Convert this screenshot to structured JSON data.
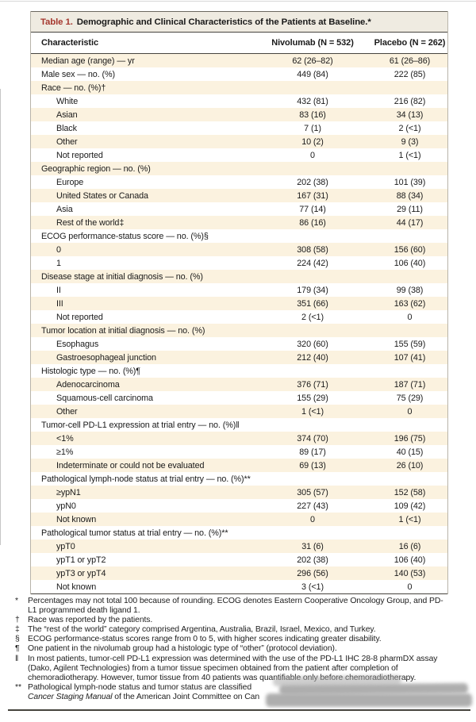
{
  "table": {
    "title_label": "Table 1.",
    "title_text": "Demographic and Clinical Characteristics of the Patients at Baseline.*",
    "columns": [
      "Characteristic",
      "Nivolumab (N = 532)",
      "Placebo (N = 262)"
    ],
    "rows": [
      {
        "label": "Median age (range) — yr",
        "indent": 0,
        "nivolumab": "62 (26–82)",
        "placebo": "61 (26–86)"
      },
      {
        "label": "Male sex — no. (%)",
        "indent": 0,
        "nivolumab": "449 (84)",
        "placebo": "222 (85)"
      },
      {
        "label": "Race — no. (%)†",
        "indent": 0,
        "nivolumab": "",
        "placebo": ""
      },
      {
        "label": "White",
        "indent": 1,
        "nivolumab": "432 (81)",
        "placebo": "216 (82)"
      },
      {
        "label": "Asian",
        "indent": 1,
        "nivolumab": "83 (16)",
        "placebo": "34 (13)"
      },
      {
        "label": "Black",
        "indent": 1,
        "nivolumab": "7 (1)",
        "placebo": "2 (<1)"
      },
      {
        "label": "Other",
        "indent": 1,
        "nivolumab": "10 (2)",
        "placebo": "9 (3)"
      },
      {
        "label": "Not reported",
        "indent": 1,
        "nivolumab": "0",
        "placebo": "1 (<1)"
      },
      {
        "label": "Geographic region — no. (%)",
        "indent": 0,
        "nivolumab": "",
        "placebo": ""
      },
      {
        "label": "Europe",
        "indent": 1,
        "nivolumab": "202 (38)",
        "placebo": "101 (39)"
      },
      {
        "label": "United States or Canada",
        "indent": 1,
        "nivolumab": "167 (31)",
        "placebo": "88 (34)"
      },
      {
        "label": "Asia",
        "indent": 1,
        "nivolumab": "77 (14)",
        "placebo": "29 (11)"
      },
      {
        "label": "Rest of the world‡",
        "indent": 1,
        "nivolumab": "86 (16)",
        "placebo": "44 (17)"
      },
      {
        "label": "ECOG performance-status score — no. (%)§",
        "indent": 0,
        "nivolumab": "",
        "placebo": ""
      },
      {
        "label": "0",
        "indent": 1,
        "nivolumab": "308 (58)",
        "placebo": "156 (60)"
      },
      {
        "label": "1",
        "indent": 1,
        "nivolumab": "224 (42)",
        "placebo": "106 (40)"
      },
      {
        "label": "Disease stage at initial diagnosis — no. (%)",
        "indent": 0,
        "nivolumab": "",
        "placebo": ""
      },
      {
        "label": "II",
        "indent": 1,
        "nivolumab": "179 (34)",
        "placebo": "99 (38)"
      },
      {
        "label": "III",
        "indent": 1,
        "nivolumab": "351 (66)",
        "placebo": "163 (62)"
      },
      {
        "label": "Not reported",
        "indent": 1,
        "nivolumab": "2 (<1)",
        "placebo": "0"
      },
      {
        "label": "Tumor location at initial diagnosis — no. (%)",
        "indent": 0,
        "nivolumab": "",
        "placebo": ""
      },
      {
        "label": "Esophagus",
        "indent": 1,
        "nivolumab": "320 (60)",
        "placebo": "155 (59)"
      },
      {
        "label": "Gastroesophageal junction",
        "indent": 1,
        "nivolumab": "212 (40)",
        "placebo": "107 (41)"
      },
      {
        "label": "Histologic type — no. (%)¶",
        "indent": 0,
        "nivolumab": "",
        "placebo": ""
      },
      {
        "label": "Adenocarcinoma",
        "indent": 1,
        "nivolumab": "376 (71)",
        "placebo": "187 (71)"
      },
      {
        "label": "Squamous-cell carcinoma",
        "indent": 1,
        "nivolumab": "155 (29)",
        "placebo": "75 (29)"
      },
      {
        "label": "Other",
        "indent": 1,
        "nivolumab": "1 (<1)",
        "placebo": "0"
      },
      {
        "label": "Tumor-cell PD-L1 expression at trial entry — no. (%)‖",
        "indent": 0,
        "nivolumab": "",
        "placebo": ""
      },
      {
        "label": "<1%",
        "indent": 1,
        "nivolumab": "374 (70)",
        "placebo": "196 (75)"
      },
      {
        "label": "≥1%",
        "indent": 1,
        "nivolumab": "89 (17)",
        "placebo": "40 (15)"
      },
      {
        "label": "Indeterminate or could not be evaluated",
        "indent": 1,
        "nivolumab": "69 (13)",
        "placebo": "26 (10)"
      },
      {
        "label": "Pathological lymph-node status at trial entry — no. (%)**",
        "indent": 0,
        "nivolumab": "",
        "placebo": ""
      },
      {
        "label": "≥ypN1",
        "indent": 1,
        "nivolumab": "305 (57)",
        "placebo": "152 (58)"
      },
      {
        "label": "ypN0",
        "indent": 1,
        "nivolumab": "227 (43)",
        "placebo": "109 (42)"
      },
      {
        "label": "Not known",
        "indent": 1,
        "nivolumab": "0",
        "placebo": "1 (<1)"
      },
      {
        "label": "Pathological tumor status at trial entry — no. (%)**",
        "indent": 0,
        "nivolumab": "",
        "placebo": ""
      },
      {
        "label": "ypT0",
        "indent": 1,
        "nivolumab": "31 (6)",
        "placebo": "16 (6)"
      },
      {
        "label": "ypT1 or ypT2",
        "indent": 1,
        "nivolumab": "202 (38)",
        "placebo": "106 (40)"
      },
      {
        "label": "ypT3 or ypT4",
        "indent": 1,
        "nivolumab": "296 (56)",
        "placebo": "140 (53)"
      },
      {
        "label": "Not known",
        "indent": 1,
        "nivolumab": "3 (<1)",
        "placebo": "0"
      }
    ]
  },
  "footnotes": [
    {
      "symbol": "*",
      "text": "Percentages may not total 100 because of rounding. ECOG denotes Eastern Cooperative Oncology Group, and PD-L1 programmed death ligand 1."
    },
    {
      "symbol": "†",
      "text": "Race was reported by the patients."
    },
    {
      "symbol": "‡",
      "text": "The “rest of the world” category comprised Argentina, Australia, Brazil, Israel, Mexico, and Turkey."
    },
    {
      "symbol": "§",
      "text": "ECOG performance-status scores range from 0 to 5, with higher scores indicating greater disability."
    },
    {
      "symbol": "¶",
      "text": "One patient in the nivolumab group had a histologic type of “other” (protocol deviation)."
    },
    {
      "symbol": "‖",
      "text": "In most patients, tumor-cell PD-L1 expression was determined with the use of the PD-L1 IHC 28-8 pharmDX assay (Dako, Agilent Technologies) from a tumor tissue specimen obtained from the patient after completion of chemoradiotherapy. However, tumor tissue from 40 patients was quantifiable only before chemoradiotherapy.",
      "obscured": true
    },
    {
      "symbol": "**",
      "parts": [
        {
          "t": "Pathological lymph-node status and tumor status are classified ",
          "i": false
        },
        {
          "br": true
        },
        {
          "t": "Cancer Staging Manual",
          "i": true
        },
        {
          "t": " of the American Joint Committee on Can",
          "i": false
        }
      ],
      "obscured": true
    }
  ],
  "colors": {
    "accent_red": "#a5372e",
    "row_cream": "#fbf2df",
    "titlebar_bg": "#efebe1",
    "rule_dark": "#46443e",
    "side_border": "#b8b4aa",
    "redaction_gray": "#a8a8a8"
  }
}
